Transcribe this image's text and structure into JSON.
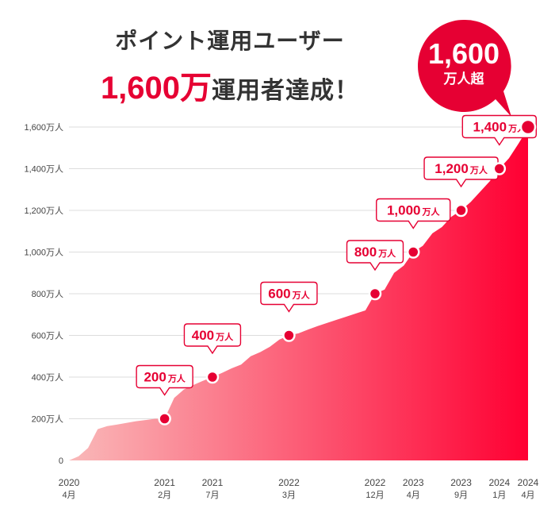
{
  "header": {
    "line1": "ポイント運用ユーザー",
    "line2_highlight": "1,600万",
    "line2_rest": "運用者達成！"
  },
  "badge": {
    "value": "1,600",
    "unit": "万人超"
  },
  "colors": {
    "accent": "#e60033",
    "fill_start": "#f9b9b9",
    "fill_end": "#ff0033",
    "grid": "#dddddd",
    "axis_text": "#444444"
  },
  "chart_data": {
    "type": "area",
    "y_unit": "万人",
    "ylim": [
      0,
      1600
    ],
    "yticks": [
      0,
      200,
      400,
      600,
      800,
      1000,
      1200,
      1400,
      1600
    ],
    "ytick_labels": [
      "0",
      "200万人",
      "400万人",
      "600万人",
      "800万人",
      "1,000万人",
      "1,200万人",
      "1,400万人",
      "1,600万人"
    ],
    "x_ticks": [
      {
        "t": 0,
        "year": "2020",
        "month": "4月"
      },
      {
        "t": 10,
        "year": "2021",
        "month": "2月"
      },
      {
        "t": 15,
        "year": "2021",
        "month": "7月"
      },
      {
        "t": 23,
        "year": "2022",
        "month": "3月"
      },
      {
        "t": 32,
        "year": "2022",
        "month": "12月"
      },
      {
        "t": 36,
        "year": "2023",
        "month": "4月"
      },
      {
        "t": 41,
        "year": "2023",
        "month": "9月"
      },
      {
        "t": 45,
        "year": "2024",
        "month": "1月"
      },
      {
        "t": 48,
        "year": "2024",
        "month": "4月"
      }
    ],
    "series": [
      {
        "points": [
          [
            0,
            0
          ],
          [
            1,
            20
          ],
          [
            2,
            60
          ],
          [
            3,
            150
          ],
          [
            4,
            165
          ],
          [
            5,
            172
          ],
          [
            6,
            180
          ],
          [
            7,
            188
          ],
          [
            8,
            194
          ],
          [
            9,
            200
          ],
          [
            10,
            200
          ],
          [
            10.3,
            230
          ],
          [
            11,
            300
          ],
          [
            12,
            340
          ],
          [
            13,
            362
          ],
          [
            14,
            382
          ],
          [
            15,
            400
          ],
          [
            16,
            420
          ],
          [
            17,
            442
          ],
          [
            18,
            460
          ],
          [
            19,
            500
          ],
          [
            20,
            520
          ],
          [
            21,
            545
          ],
          [
            22,
            580
          ],
          [
            23,
            600
          ],
          [
            24,
            610
          ],
          [
            25,
            628
          ],
          [
            26,
            645
          ],
          [
            27,
            660
          ],
          [
            28,
            675
          ],
          [
            29,
            690
          ],
          [
            30,
            705
          ],
          [
            31,
            720
          ],
          [
            32,
            800
          ],
          [
            33,
            820
          ],
          [
            34,
            900
          ],
          [
            35,
            935
          ],
          [
            36,
            1000
          ],
          [
            37,
            1030
          ],
          [
            38,
            1090
          ],
          [
            39,
            1120
          ],
          [
            40,
            1170
          ],
          [
            41,
            1200
          ],
          [
            42,
            1240
          ],
          [
            43,
            1290
          ],
          [
            44,
            1340
          ],
          [
            45,
            1400
          ],
          [
            46,
            1450
          ],
          [
            47,
            1520
          ],
          [
            47.8,
            1580
          ]
        ]
      }
    ],
    "milestones": [
      {
        "t": 10,
        "value": 200,
        "label_num": "200",
        "label_unit": "万人"
      },
      {
        "t": 15,
        "value": 400,
        "label_num": "400",
        "label_unit": "万人"
      },
      {
        "t": 23,
        "value": 600,
        "label_num": "600",
        "label_unit": "万人"
      },
      {
        "t": 32,
        "value": 800,
        "label_num": "800",
        "label_unit": "万人"
      },
      {
        "t": 36,
        "value": 1000,
        "label_num": "1,000",
        "label_unit": "万人"
      },
      {
        "t": 41,
        "value": 1200,
        "label_num": "1,200",
        "label_unit": "万人"
      },
      {
        "t": 45,
        "value": 1400,
        "label_num": "1,400",
        "label_unit": "万人"
      },
      {
        "t": 48,
        "value": 1600,
        "label_num": "",
        "label_unit": ""
      }
    ]
  }
}
